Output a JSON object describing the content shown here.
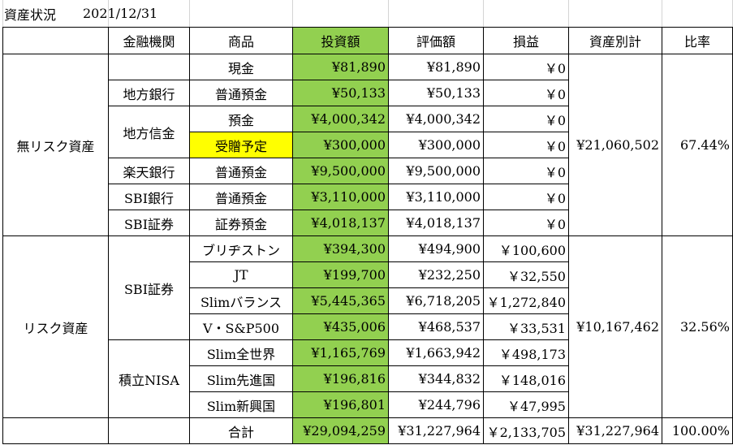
{
  "header": {
    "title": "資産状況",
    "date": "2021/12/31"
  },
  "table": {
    "columns": [
      "金融機関",
      "商品",
      "投資額",
      "評価額",
      "損益",
      "資産別計",
      "比率"
    ],
    "groups": [
      {
        "category": "無リスク資産",
        "subtotal": "¥21,060,502",
        "ratio": "67.44%",
        "institutions": [
          {
            "name": null,
            "rows": [
              {
                "product": "現金",
                "invest": "¥81,890",
                "value": "¥81,890",
                "pl": "￥0"
              }
            ]
          },
          {
            "name": "地方銀行",
            "rows": [
              {
                "product": "普通預金",
                "invest": "¥50,133",
                "value": "¥50,133",
                "pl": "￥0"
              }
            ]
          },
          {
            "name": "地方信金",
            "rows": [
              {
                "product": "預金",
                "invest": "¥4,000,342",
                "value": "¥4,000,342",
                "pl": "￥0"
              },
              {
                "product": "受贈予定",
                "invest": "¥300,000",
                "value": "¥300,000",
                "pl": "￥0",
                "highlight": true
              }
            ]
          },
          {
            "name": "楽天銀行",
            "rows": [
              {
                "product": "普通預金",
                "invest": "¥9,500,000",
                "value": "¥9,500,000",
                "pl": "￥0"
              }
            ]
          },
          {
            "name": "SBI銀行",
            "rows": [
              {
                "product": "普通預金",
                "invest": "¥3,110,000",
                "value": "¥3,110,000",
                "pl": "￥0"
              }
            ]
          },
          {
            "name": "SBI証券",
            "rows": [
              {
                "product": "証券預金",
                "invest": "¥4,018,137",
                "value": "¥4,018,137",
                "pl": "￥0"
              }
            ]
          }
        ]
      },
      {
        "category": "リスク資産",
        "subtotal": "¥10,167,462",
        "ratio": "32.56%",
        "institutions": [
          {
            "name": "SBI証券",
            "rows": [
              {
                "product": "ブリヂストン",
                "invest": "¥394,300",
                "value": "¥494,900",
                "pl": "￥100,600"
              },
              {
                "product": "JT",
                "invest": "¥199,700",
                "value": "¥232,250",
                "pl": "￥32,550"
              },
              {
                "product": "Slimバランス",
                "invest": "¥5,445,365",
                "value": "¥6,718,205",
                "pl": "￥1,272,840"
              },
              {
                "product": "V・S&P500",
                "invest": "¥435,006",
                "value": "¥468,537",
                "pl": "￥33,531"
              }
            ]
          },
          {
            "name": "積立NISA",
            "rows": [
              {
                "product": "Slim全世界",
                "invest": "¥1,165,769",
                "value": "¥1,663,942",
                "pl": "￥498,173"
              },
              {
                "product": "Slim先進国",
                "invest": "¥196,816",
                "value": "¥344,832",
                "pl": "￥148,016"
              },
              {
                "product": "Slim新興国",
                "invest": "¥196,801",
                "value": "¥244,796",
                "pl": "￥47,995"
              }
            ]
          }
        ]
      }
    ],
    "total": {
      "label": "合計",
      "invest": "¥29,094,259",
      "value": "¥31,227,964",
      "pl": "￥2,133,705",
      "subtotal": "¥31,227,964",
      "ratio": "100.00%"
    }
  }
}
